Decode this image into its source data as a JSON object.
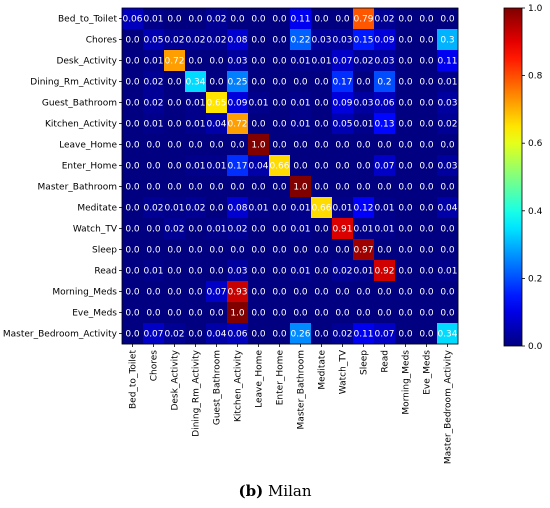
{
  "caption": {
    "label": "(b)",
    "text": "Milan"
  },
  "chart_data": {
    "type": "heatmap",
    "title": "",
    "xlabel": "",
    "ylabel": "",
    "colormap": "jet",
    "vmin": 0,
    "vmax": 1,
    "colorbar_ticks": [
      "0.0",
      "0.2",
      "0.4",
      "0.6",
      "0.8",
      "1.0"
    ],
    "rows": [
      "Bed_to_Toilet",
      "Chores",
      "Desk_Activity",
      "Dining_Rm_Activity",
      "Guest_Bathroom",
      "Kitchen_Activity",
      "Leave_Home",
      "Enter_Home",
      "Master_Bathroom",
      "Meditate",
      "Watch_TV",
      "Sleep",
      "Read",
      "Morning_Meds",
      "Eve_Meds",
      "Master_Bedroom_Activity"
    ],
    "columns": [
      "Bed_to_Toilet",
      "Chores",
      "Desk_Activity",
      "Dining_Rm_Activity",
      "Guest_Bathroom",
      "Kitchen_Activity",
      "Leave_Home",
      "Enter_Home",
      "Master_Bathroom",
      "Meditate",
      "Watch_TV",
      "Sleep",
      "Read",
      "Morning_Meds",
      "Eve_Meds",
      "Master_Bedroom_Activity"
    ],
    "values": [
      [
        0.06,
        0.01,
        0.0,
        0.0,
        0.02,
        0.0,
        0.0,
        0.0,
        0.11,
        0.0,
        0.0,
        0.79,
        0.02,
        0.0,
        0.0,
        0.0
      ],
      [
        0.0,
        0.05,
        0.02,
        0.02,
        0.02,
        0.08,
        0.0,
        0.0,
        0.22,
        0.03,
        0.03,
        0.15,
        0.09,
        0.0,
        0.0,
        0.3
      ],
      [
        0.0,
        0.01,
        0.72,
        0.0,
        0.0,
        0.03,
        0.0,
        0.0,
        0.01,
        0.01,
        0.07,
        0.02,
        0.03,
        0.0,
        0.0,
        0.11
      ],
      [
        0.0,
        0.02,
        0.0,
        0.34,
        0.0,
        0.25,
        0.0,
        0.0,
        0.0,
        0.0,
        0.17,
        0.0,
        0.2,
        0.0,
        0.0,
        0.01
      ],
      [
        0.0,
        0.02,
        0.0,
        0.01,
        0.65,
        0.09,
        0.01,
        0.0,
        0.01,
        0.0,
        0.09,
        0.03,
        0.06,
        0.0,
        0.0,
        0.03
      ],
      [
        0.0,
        0.01,
        0.0,
        0.01,
        0.04,
        0.72,
        0.0,
        0.0,
        0.01,
        0.0,
        0.05,
        0.01,
        0.13,
        0.0,
        0.0,
        0.02
      ],
      [
        0.0,
        0.0,
        0.0,
        0.0,
        0.0,
        0.0,
        1.0,
        0.0,
        0.0,
        0.0,
        0.0,
        0.0,
        0.0,
        0.0,
        0.0,
        0.0
      ],
      [
        0.0,
        0.0,
        0.0,
        0.01,
        0.01,
        0.17,
        0.04,
        0.66,
        0.0,
        0.0,
        0.0,
        0.0,
        0.07,
        0.0,
        0.0,
        0.03
      ],
      [
        0.0,
        0.0,
        0.0,
        0.0,
        0.0,
        0.0,
        0.0,
        0.0,
        1.0,
        0.0,
        0.0,
        0.0,
        0.0,
        0.0,
        0.0,
        0.0
      ],
      [
        0.0,
        0.02,
        0.01,
        0.02,
        0.0,
        0.08,
        0.01,
        0.0,
        0.01,
        0.66,
        0.01,
        0.12,
        0.01,
        0.0,
        0.0,
        0.04
      ],
      [
        0.0,
        0.0,
        0.02,
        0.0,
        0.01,
        0.02,
        0.0,
        0.0,
        0.01,
        0.0,
        0.91,
        0.01,
        0.01,
        0.0,
        0.0,
        0.0
      ],
      [
        0.0,
        0.0,
        0.0,
        0.0,
        0.0,
        0.0,
        0.0,
        0.0,
        0.0,
        0.0,
        0.0,
        0.97,
        0.0,
        0.0,
        0.0,
        0.0
      ],
      [
        0.0,
        0.01,
        0.0,
        0.0,
        0.0,
        0.03,
        0.0,
        0.0,
        0.01,
        0.0,
        0.02,
        0.01,
        0.92,
        0.0,
        0.0,
        0.01
      ],
      [
        0.0,
        0.0,
        0.0,
        0.0,
        0.07,
        0.93,
        0.0,
        0.0,
        0.0,
        0.0,
        0.0,
        0.0,
        0.0,
        0.0,
        0.0,
        0.0
      ],
      [
        0.0,
        0.0,
        0.0,
        0.0,
        0.0,
        1.0,
        0.0,
        0.0,
        0.0,
        0.0,
        0.0,
        0.0,
        0.0,
        0.0,
        0.0,
        0.0
      ],
      [
        0.0,
        0.07,
        0.02,
        0.0,
        0.04,
        0.06,
        0.0,
        0.0,
        0.26,
        0.0,
        0.02,
        0.11,
        0.07,
        0.0,
        0.0,
        0.34
      ]
    ]
  }
}
